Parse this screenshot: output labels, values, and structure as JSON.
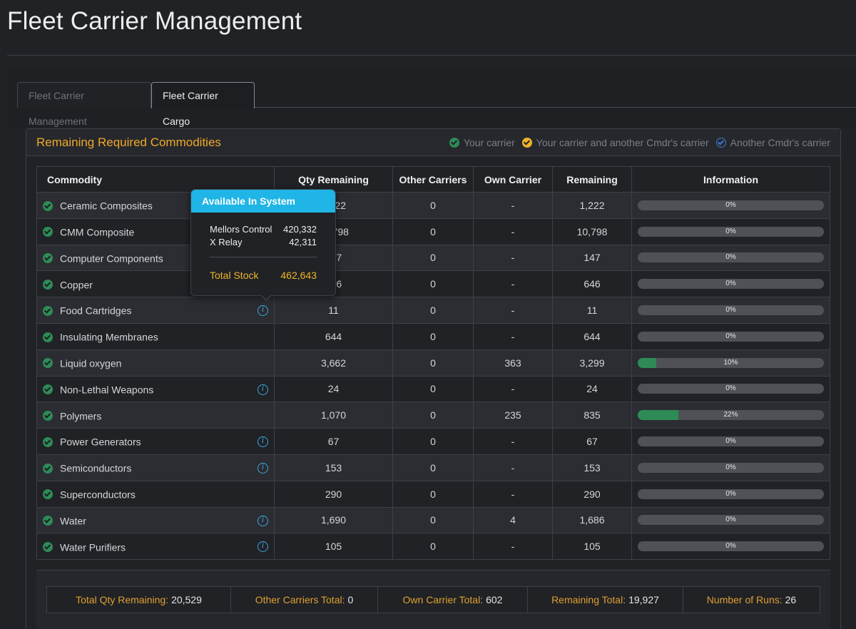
{
  "page": {
    "title": "Fleet Carrier Management"
  },
  "tabs": [
    {
      "label": "Fleet Carrier Management",
      "active": false
    },
    {
      "label": "Fleet Carrier Cargo",
      "active": true
    }
  ],
  "panel": {
    "title": "Remaining Required Commodities",
    "legend": [
      {
        "label": "Your carrier",
        "icon": "check-circle-green-icon"
      },
      {
        "label": "Your carrier and another Cmdr's carrier",
        "icon": "check-circle-yellow-icon"
      },
      {
        "label": "Another Cmdr's carrier",
        "icon": "check-circle-blue-icon"
      }
    ]
  },
  "table": {
    "headers": [
      "Commodity",
      "Qty Remaining",
      "Other Carriers",
      "Own Carrier",
      "Remaining",
      "Information"
    ],
    "rows": [
      {
        "name": "Ceramic Composites",
        "info": false,
        "qty": "1,222",
        "other": "0",
        "own": "-",
        "remaining": "1,222",
        "progress": "0%",
        "progress_value": 0
      },
      {
        "name": "CMM Composite",
        "info": false,
        "qty": "10,798",
        "other": "0",
        "own": "-",
        "remaining": "10,798",
        "progress": "0%",
        "progress_value": 0
      },
      {
        "name": "Computer Components",
        "info": false,
        "qty": "147",
        "other": "0",
        "own": "-",
        "remaining": "147",
        "progress": "0%",
        "progress_value": 0
      },
      {
        "name": "Copper",
        "info": false,
        "qty": "646",
        "other": "0",
        "own": "-",
        "remaining": "646",
        "progress": "0%",
        "progress_value": 0
      },
      {
        "name": "Food Cartridges",
        "info": true,
        "qty": "11",
        "other": "0",
        "own": "-",
        "remaining": "11",
        "progress": "0%",
        "progress_value": 0
      },
      {
        "name": "Insulating Membranes",
        "info": false,
        "qty": "644",
        "other": "0",
        "own": "-",
        "remaining": "644",
        "progress": "0%",
        "progress_value": 0
      },
      {
        "name": "Liquid oxygen",
        "info": false,
        "qty": "3,662",
        "other": "0",
        "own": "363",
        "remaining": "3,299",
        "progress": "10%",
        "progress_value": 10
      },
      {
        "name": "Non-Lethal Weapons",
        "info": true,
        "qty": "24",
        "other": "0",
        "own": "-",
        "remaining": "24",
        "progress": "0%",
        "progress_value": 0
      },
      {
        "name": "Polymers",
        "info": false,
        "qty": "1,070",
        "other": "0",
        "own": "235",
        "remaining": "835",
        "progress": "22%",
        "progress_value": 22
      },
      {
        "name": "Power Generators",
        "info": true,
        "qty": "67",
        "other": "0",
        "own": "-",
        "remaining": "67",
        "progress": "0%",
        "progress_value": 0
      },
      {
        "name": "Semiconductors",
        "info": true,
        "qty": "153",
        "other": "0",
        "own": "-",
        "remaining": "153",
        "progress": "0%",
        "progress_value": 0
      },
      {
        "name": "Superconductors",
        "info": false,
        "qty": "290",
        "other": "0",
        "own": "-",
        "remaining": "290",
        "progress": "0%",
        "progress_value": 0
      },
      {
        "name": "Water",
        "info": true,
        "qty": "1,690",
        "other": "0",
        "own": "4",
        "remaining": "1,686",
        "progress": "0%",
        "progress_value": 0
      },
      {
        "name": "Water Purifiers",
        "info": true,
        "qty": "105",
        "other": "0",
        "own": "-",
        "remaining": "105",
        "progress": "0%",
        "progress_value": 0
      }
    ]
  },
  "totals": [
    {
      "label": "Total Qty Remaining:",
      "value": "20,529"
    },
    {
      "label": "Other Carriers Total:",
      "value": "0"
    },
    {
      "label": "Own Carrier Total:",
      "value": "602"
    },
    {
      "label": "Remaining Total:",
      "value": "19,927"
    },
    {
      "label": "Number of Runs:",
      "value": "26"
    }
  ],
  "popover": {
    "title": "Available In System",
    "stations": [
      {
        "name": "Mellors Control",
        "stock": "420,332"
      },
      {
        "name": "X Relay",
        "stock": "42,311"
      }
    ],
    "total_label": "Total Stock",
    "total_value": "462,643"
  },
  "colors": {
    "accent": "#f0a928",
    "check_green": "#2e8b57",
    "popover_header": "#1fb5e6",
    "info_icon": "#3ea6e0"
  }
}
